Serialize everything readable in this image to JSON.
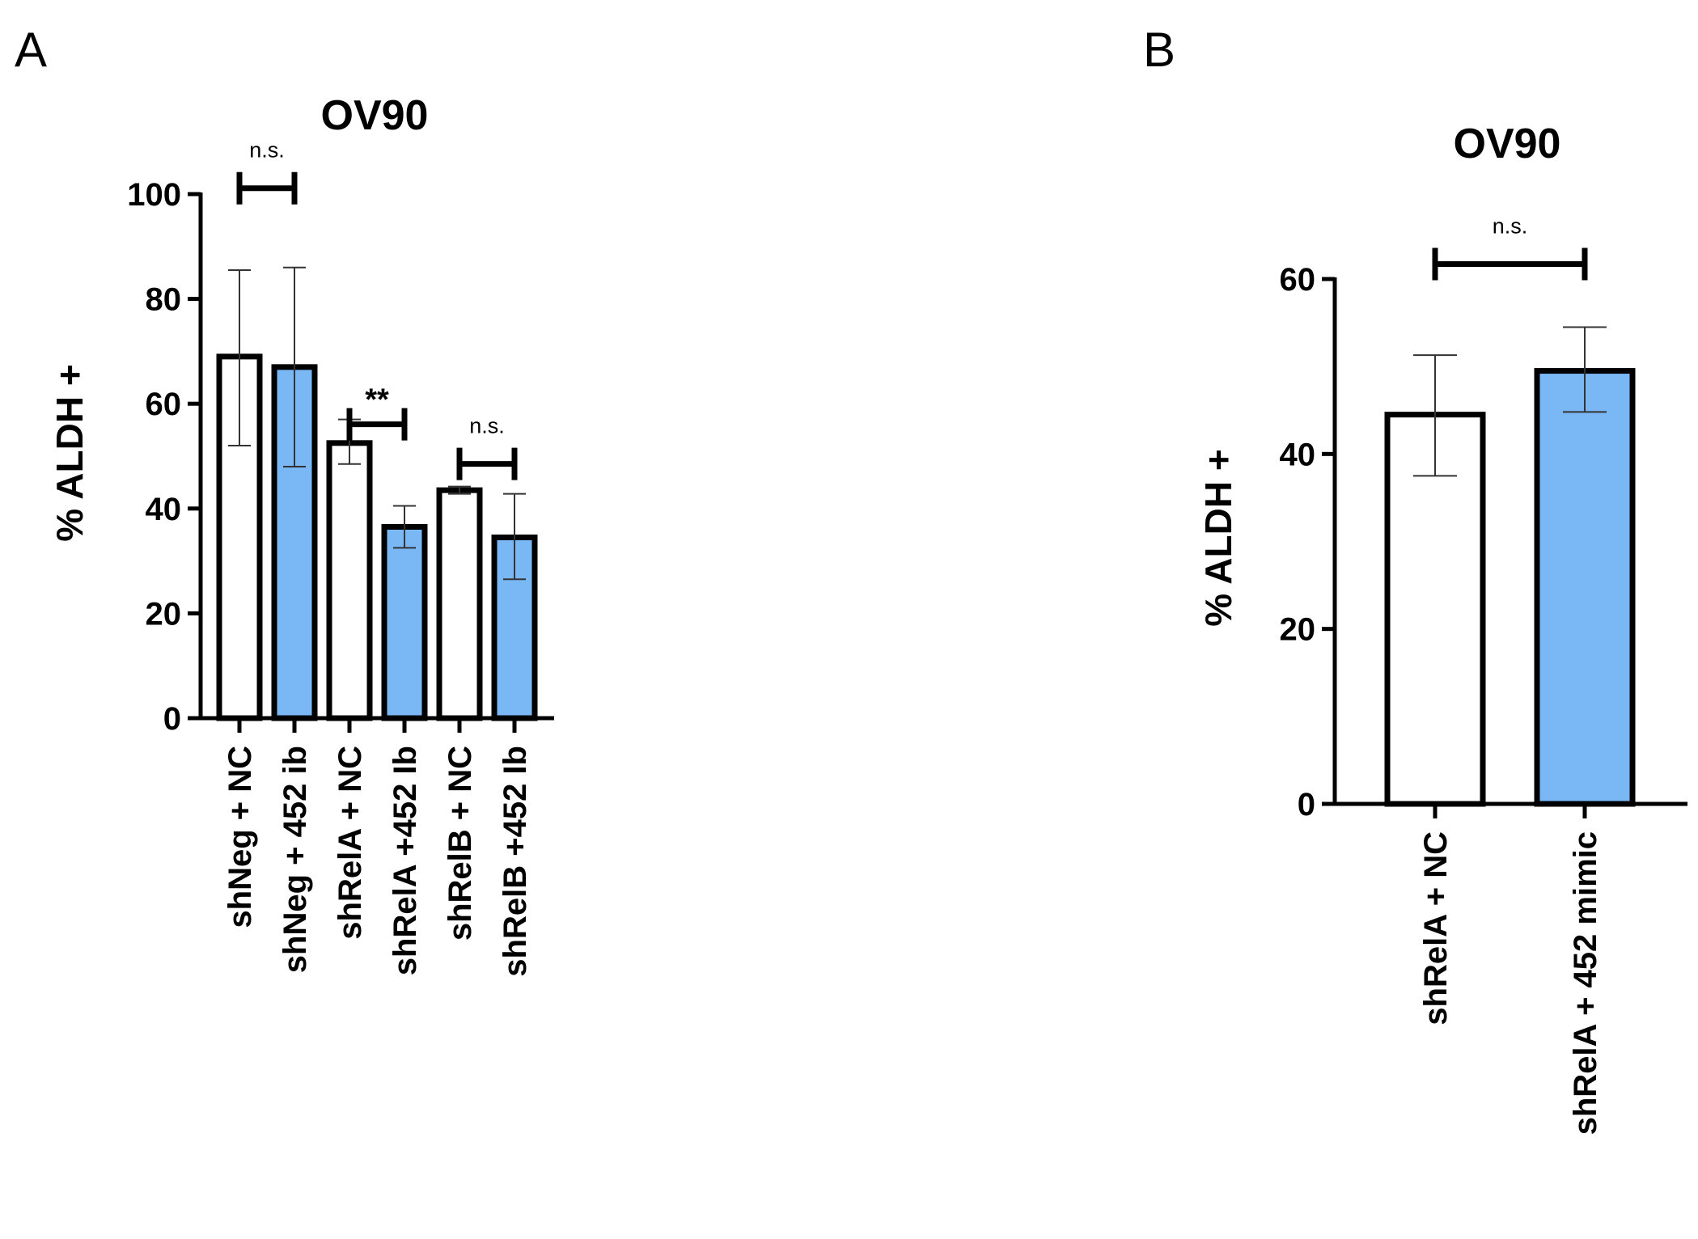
{
  "chart_data": [
    {
      "panel": "A",
      "type": "bar",
      "title": "OV90",
      "ylabel": "% ALDH +",
      "xlabel": "",
      "ylim": [
        0,
        100
      ],
      "yticks": [
        "0",
        "20",
        "40",
        "60",
        "80",
        "100"
      ],
      "categories": [
        "shNeg + NC",
        "shNeg + 452 ib",
        "shRelA + NC",
        "shRelA +452 Ib",
        "shRelB + NC",
        "shRelB +452 Ib"
      ],
      "values": [
        69,
        67,
        52.5,
        36.5,
        43.5,
        34.5
      ],
      "error_low": [
        52,
        48,
        48.5,
        32.5,
        42.8,
        26.5
      ],
      "error_high": [
        85.5,
        86,
        57,
        40.5,
        44.2,
        42.8
      ],
      "fill_colors": [
        "#ffffff",
        "#7ab8f5",
        "#ffffff",
        "#7ab8f5",
        "#ffffff",
        "#7ab8f5"
      ],
      "comparisons": [
        {
          "pair": [
            0,
            1
          ],
          "label": "n.s."
        },
        {
          "pair": [
            2,
            3
          ],
          "label": "**"
        },
        {
          "pair": [
            4,
            5
          ],
          "label": "n.s."
        }
      ]
    },
    {
      "panel": "B",
      "type": "bar",
      "title": "OV90",
      "ylabel": "% ALDH +",
      "xlabel": "",
      "ylim": [
        0,
        60
      ],
      "yticks": [
        "0",
        "20",
        "40",
        "60"
      ],
      "categories": [
        "shRelA + NC",
        "shRelA + 452 mimic"
      ],
      "values": [
        44.5,
        49.5
      ],
      "error_low": [
        37.5,
        44.8
      ],
      "error_high": [
        51.3,
        54.5
      ],
      "fill_colors": [
        "#ffffff",
        "#7ab8f5"
      ],
      "comparisons": [
        {
          "pair": [
            0,
            1
          ],
          "label": "n.s."
        }
      ]
    }
  ]
}
